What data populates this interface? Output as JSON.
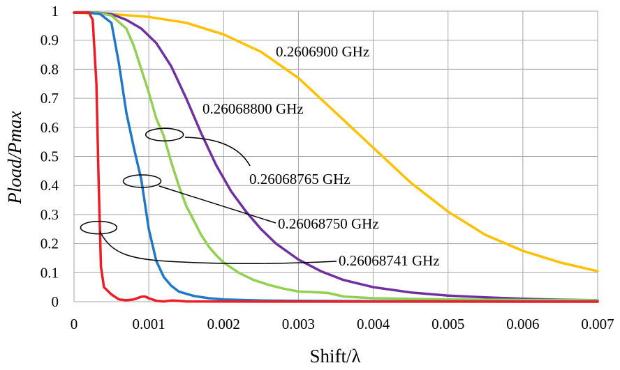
{
  "chart_data": {
    "type": "line",
    "title": "",
    "xlabel": "Shift/λ",
    "ylabel": "Pload/Pmax",
    "xlim": [
      0,
      0.007
    ],
    "ylim": [
      0,
      1
    ],
    "x_ticks": [
      "0",
      "0.001",
      "0.002",
      "0.003",
      "0.004",
      "0.005",
      "0.006",
      "0.007"
    ],
    "y_ticks": [
      "0",
      "0.1",
      "0.2",
      "0.3",
      "0.4",
      "0.5",
      "0.6",
      "0.7",
      "0.8",
      "0.9",
      "1"
    ],
    "grid": true,
    "legend": "none (series labeled inline with callouts)",
    "series": [
      {
        "name": "0.26068741 GHz",
        "color": "#ee1c24",
        "points": [
          [
            0,
            0.995
          ],
          [
            0.0002,
            0.995
          ],
          [
            0.00025,
            0.97
          ],
          [
            0.0003,
            0.75
          ],
          [
            0.00033,
            0.4
          ],
          [
            0.00036,
            0.12
          ],
          [
            0.0004,
            0.05
          ],
          [
            0.0005,
            0.025
          ],
          [
            0.0006,
            0.008
          ],
          [
            0.0007,
            0.005
          ],
          [
            0.0008,
            0.008
          ],
          [
            0.0009,
            0.017
          ],
          [
            0.00095,
            0.018
          ],
          [
            0.001,
            0.012
          ],
          [
            0.0011,
            0.003
          ],
          [
            0.0012,
            0.001
          ],
          [
            0.0013,
            0.004
          ],
          [
            0.0014,
            0.003
          ],
          [
            0.0015,
            0.001
          ],
          [
            0.002,
            0.0005
          ],
          [
            0.003,
            0.0003
          ],
          [
            0.004,
            0.0002
          ],
          [
            0.005,
            0.0002
          ],
          [
            0.006,
            0.0001
          ],
          [
            0.007,
            0.0001
          ]
        ]
      },
      {
        "name": "0.26068750 GHz",
        "color": "#1f78c8",
        "points": [
          [
            0,
            0.995
          ],
          [
            0.0002,
            0.995
          ],
          [
            0.00035,
            0.99
          ],
          [
            0.0005,
            0.96
          ],
          [
            0.0006,
            0.82
          ],
          [
            0.0007,
            0.65
          ],
          [
            0.0008,
            0.53
          ],
          [
            0.0009,
            0.42
          ],
          [
            0.001,
            0.25
          ],
          [
            0.0011,
            0.14
          ],
          [
            0.0012,
            0.085
          ],
          [
            0.0013,
            0.055
          ],
          [
            0.0014,
            0.035
          ],
          [
            0.0016,
            0.02
          ],
          [
            0.0018,
            0.012
          ],
          [
            0.002,
            0.008
          ],
          [
            0.0025,
            0.004
          ],
          [
            0.003,
            0.003
          ],
          [
            0.004,
            0.002
          ],
          [
            0.005,
            0.0015
          ],
          [
            0.006,
            0.001
          ],
          [
            0.007,
            0.001
          ]
        ]
      },
      {
        "name": "0.26068765 GHz",
        "color": "#92d050",
        "points": [
          [
            0,
            0.995
          ],
          [
            0.0003,
            0.995
          ],
          [
            0.0005,
            0.985
          ],
          [
            0.0007,
            0.94
          ],
          [
            0.0008,
            0.88
          ],
          [
            0.0009,
            0.8
          ],
          [
            0.001,
            0.72
          ],
          [
            0.0011,
            0.63
          ],
          [
            0.0012,
            0.57
          ],
          [
            0.0013,
            0.48
          ],
          [
            0.0014,
            0.4
          ],
          [
            0.0015,
            0.33
          ],
          [
            0.0016,
            0.28
          ],
          [
            0.0017,
            0.23
          ],
          [
            0.0018,
            0.19
          ],
          [
            0.0019,
            0.16
          ],
          [
            0.002,
            0.135
          ],
          [
            0.0022,
            0.1
          ],
          [
            0.0024,
            0.075
          ],
          [
            0.0026,
            0.058
          ],
          [
            0.0028,
            0.045
          ],
          [
            0.003,
            0.035
          ],
          [
            0.0032,
            0.033
          ],
          [
            0.0034,
            0.03
          ],
          [
            0.0036,
            0.018
          ],
          [
            0.004,
            0.012
          ],
          [
            0.005,
            0.008
          ],
          [
            0.006,
            0.006
          ],
          [
            0.007,
            0.005
          ]
        ]
      },
      {
        "name": "0.26068800 GHz",
        "color": "#7030a0",
        "points": [
          [
            0,
            0.995
          ],
          [
            0.0003,
            0.995
          ],
          [
            0.0005,
            0.99
          ],
          [
            0.0007,
            0.97
          ],
          [
            0.0009,
            0.94
          ],
          [
            0.0011,
            0.89
          ],
          [
            0.0013,
            0.81
          ],
          [
            0.0015,
            0.7
          ],
          [
            0.0017,
            0.58
          ],
          [
            0.0019,
            0.47
          ],
          [
            0.0021,
            0.38
          ],
          [
            0.0023,
            0.31
          ],
          [
            0.0025,
            0.25
          ],
          [
            0.0027,
            0.2
          ],
          [
            0.003,
            0.145
          ],
          [
            0.0033,
            0.105
          ],
          [
            0.0036,
            0.075
          ],
          [
            0.004,
            0.05
          ],
          [
            0.0045,
            0.032
          ],
          [
            0.005,
            0.021
          ],
          [
            0.0055,
            0.015
          ],
          [
            0.006,
            0.01
          ],
          [
            0.0065,
            0.007
          ],
          [
            0.007,
            0.005
          ]
        ]
      },
      {
        "name": "0.2606900 GHz",
        "color": "#ffc000",
        "points": [
          [
            0,
            0.995
          ],
          [
            0.0005,
            0.99
          ],
          [
            0.001,
            0.98
          ],
          [
            0.0015,
            0.96
          ],
          [
            0.002,
            0.92
          ],
          [
            0.0025,
            0.86
          ],
          [
            0.003,
            0.77
          ],
          [
            0.0035,
            0.65
          ],
          [
            0.004,
            0.53
          ],
          [
            0.0045,
            0.41
          ],
          [
            0.005,
            0.31
          ],
          [
            0.0055,
            0.23
          ],
          [
            0.006,
            0.175
          ],
          [
            0.0065,
            0.135
          ],
          [
            0.007,
            0.105
          ]
        ]
      }
    ],
    "annotations": [
      {
        "text": "0.2606900 GHz"
      },
      {
        "text": "0.26068800 GHz"
      },
      {
        "text": "0.26068765 GHz"
      },
      {
        "text": "0.26068750 GHz"
      },
      {
        "text": "0.26068741 GHz"
      }
    ]
  }
}
